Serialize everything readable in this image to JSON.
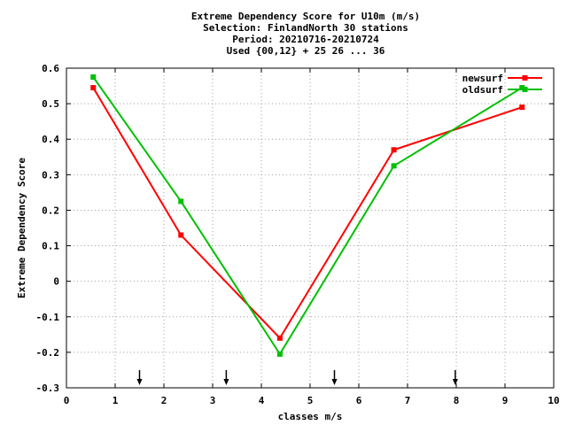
{
  "chart_data": {
    "type": "line",
    "title_lines": [
      "Extreme Dependency Score  for U10m (m/s)",
      "Selection: FinlandNorth     30 stations",
      "Period: 20210716-20210724",
      "Used {00,12} + 25 26 ... 36"
    ],
    "xlabel": "classes m/s",
    "ylabel": "Extreme Dependency Score",
    "xlim": [
      0,
      10
    ],
    "ylim": [
      -0.3,
      0.6
    ],
    "xticks": [
      0,
      1,
      2,
      3,
      4,
      5,
      6,
      7,
      8,
      9,
      10
    ],
    "yticks": [
      -0.3,
      -0.2,
      -0.1,
      0,
      0.1,
      0.2,
      0.3,
      0.4,
      0.5,
      0.6
    ],
    "ytick_labels": [
      "-0.3",
      "-0.2",
      "-0.1",
      "0",
      "0.1",
      "0.2",
      "0.3",
      "0.4",
      "0.5",
      "0.6"
    ],
    "grid": true,
    "legend_position": "top-right",
    "series": [
      {
        "name": "newsurf",
        "color": "#ff0000",
        "x": [
          0.55,
          2.35,
          4.38,
          6.72,
          9.35
        ],
        "y": [
          0.545,
          0.13,
          -0.16,
          0.37,
          0.49
        ]
      },
      {
        "name": "oldsurf",
        "color": "#00c000",
        "x": [
          0.55,
          2.35,
          4.38,
          6.72,
          9.35
        ],
        "y": [
          0.575,
          0.225,
          -0.205,
          0.325,
          0.545
        ]
      }
    ],
    "class_boundary_arrows": [
      1.5,
      3.28,
      5.5,
      7.98
    ]
  }
}
